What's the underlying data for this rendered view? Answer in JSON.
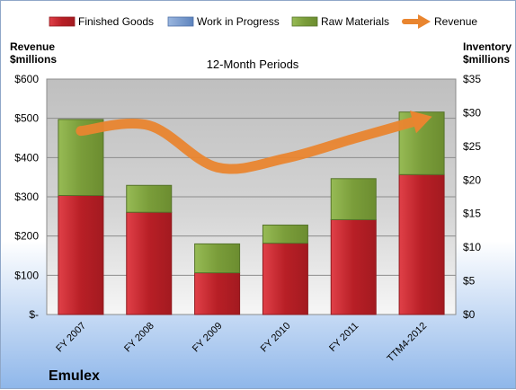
{
  "chart_data": {
    "type": "bar",
    "title": "12-Month Periods",
    "company": "Emulex",
    "y_left_label": [
      "Revenue",
      "$millions"
    ],
    "y_right_label": [
      "Inventory",
      "$millions"
    ],
    "categories": [
      "FY 2007",
      "FY 2008",
      "FY 2009",
      "FY 2010",
      "FY 2011",
      "TTM4-2012"
    ],
    "left_ticks": [
      "$-",
      "$100",
      "$200",
      "$300",
      "$400",
      "$500",
      "$600"
    ],
    "right_ticks": [
      "$0",
      "$5",
      "$10",
      "$15",
      "$20",
      "$25",
      "$30",
      "$35"
    ],
    "left_ylim": [
      0,
      600
    ],
    "right_ylim": [
      0,
      35
    ],
    "legend_position": "top",
    "series": [
      {
        "name": "Finished Goods",
        "axis": "right",
        "color": "#c0272d",
        "values": [
          17.7,
          15.2,
          6.2,
          10.6,
          14.1,
          20.8
        ]
      },
      {
        "name": "Work in Progress",
        "axis": "right",
        "color": "#6f93c8",
        "values": [
          0,
          0,
          0,
          0,
          0,
          0
        ]
      },
      {
        "name": "Raw Materials",
        "axis": "right",
        "color": "#7ea03a",
        "values": [
          11.3,
          4.0,
          4.3,
          2.7,
          6.1,
          9.3
        ]
      },
      {
        "name": "Revenue",
        "axis": "left",
        "color": "#e9852f",
        "type": "line",
        "values": [
          468,
          482,
          375,
          398,
          448,
          497
        ]
      }
    ]
  }
}
